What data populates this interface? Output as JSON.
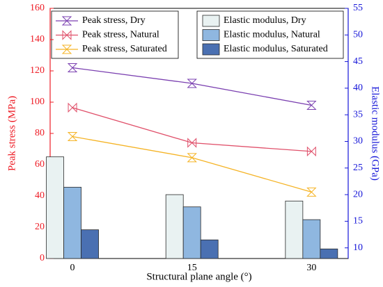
{
  "chart_data": {
    "type": "combo",
    "x_label": "Structural plane angle (°)",
    "y_label": "Peak stress (MPa)",
    "y2_label": "Elastic modulus (GPa)",
    "x": [
      0,
      15,
      30
    ],
    "xlim": [
      -2.8,
      34.6
    ],
    "xticks": [
      0,
      15,
      30
    ],
    "ylim": [
      0,
      160
    ],
    "yticks": [
      0,
      20,
      40,
      60,
      80,
      100,
      120,
      140,
      160
    ],
    "y2lim": [
      8,
      55
    ],
    "y2ticks": [
      10,
      15,
      20,
      25,
      30,
      35,
      40,
      45,
      50,
      55
    ],
    "y_axis_color": "#ee1c25",
    "y2_axis_color": "#1515d8",
    "series": [
      {
        "name": "Peak stress, Dry",
        "type": "line",
        "color": "#7a3fb0",
        "values": [
          122,
          112,
          98
        ]
      },
      {
        "name": "Peak stress, Natural",
        "type": "line",
        "color": "#e0506a",
        "values": [
          96.5,
          74,
          68.5
        ]
      },
      {
        "name": "Peak stress, Saturated",
        "type": "line",
        "color": "#f5b324",
        "values": [
          78,
          64.5,
          42.5
        ]
      },
      {
        "name": "Elastic modulus, Dry",
        "type": "bar",
        "axis": "y2",
        "color": "#e9f2f2",
        "values": [
          27.1,
          20.0,
          18.8
        ]
      },
      {
        "name": "Elastic modulus, Natural",
        "type": "bar",
        "axis": "y2",
        "color": "#8fb7e0",
        "values": [
          21.4,
          17.7,
          15.3
        ]
      },
      {
        "name": "Elastic modulus, Saturated",
        "type": "bar",
        "axis": "y2",
        "color": "#4a70b2",
        "values": [
          13.4,
          11.5,
          9.8
        ]
      }
    ]
  }
}
